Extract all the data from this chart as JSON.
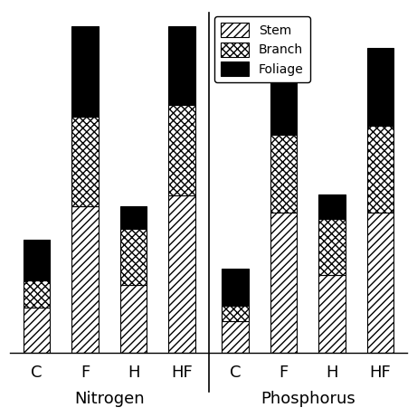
{
  "nitrogen": {
    "categories": [
      "C",
      "F",
      "H",
      "HF"
    ],
    "stem": [
      2.0,
      6.5,
      3.0,
      7.0
    ],
    "branch": [
      1.2,
      4.0,
      2.5,
      4.0
    ],
    "foliage": [
      1.8,
      4.0,
      1.0,
      3.5
    ]
  },
  "phosphorus": {
    "categories": [
      "C",
      "F",
      "H",
      "HF"
    ],
    "stem": [
      1.0,
      4.5,
      2.5,
      4.5
    ],
    "branch": [
      0.5,
      2.5,
      1.8,
      2.8
    ],
    "foliage": [
      1.2,
      3.5,
      0.8,
      2.5
    ]
  },
  "stem_hatch": "////",
  "branch_hatch": "xxxx",
  "foliage_color": "#000000",
  "bar_facecolor": "white",
  "bar_edgecolor": "black",
  "xlabel_nitrogen": "Nitrogen",
  "xlabel_phosphorus": "Phosphorus",
  "legend_labels": [
    "Stem",
    "Branch",
    "Foliage"
  ],
  "bar_width": 0.55,
  "x_positions": [
    0,
    1,
    2,
    3
  ],
  "figsize": [
    4.61,
    4.61
  ],
  "dpi": 100,
  "tick_fontsize": 13,
  "xlabel_fontsize": 13,
  "legend_fontsize": 10
}
